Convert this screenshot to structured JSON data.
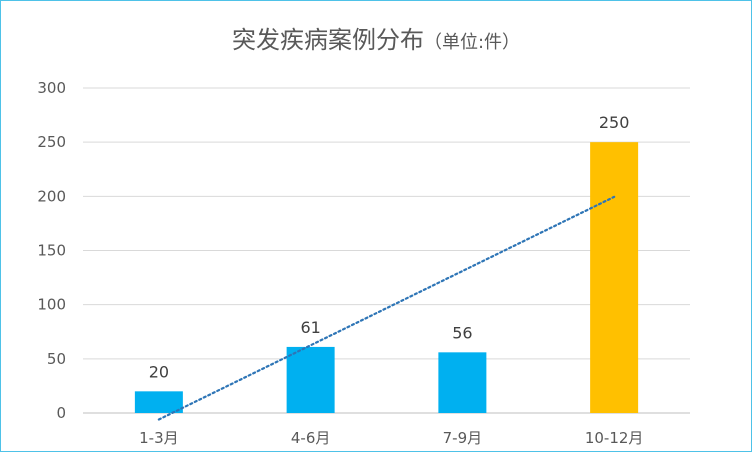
{
  "chart_data": {
    "type": "bar",
    "title": "突发疾病案例分布",
    "title_unit": "（单位:件）",
    "categories": [
      "1-3月",
      "4-6月",
      "7-9月",
      "10-12月"
    ],
    "values": [
      20,
      61,
      56,
      250
    ],
    "bar_colors": [
      "#00b0f0",
      "#00b0f0",
      "#00b0f0",
      "#ffc000"
    ],
    "ylim": [
      0,
      300
    ],
    "yticks": [
      0,
      50,
      100,
      150,
      200,
      250,
      300
    ],
    "grid": true,
    "legend": "none",
    "trendline": {
      "type": "linear",
      "style": "dotted",
      "color": "#2e75b6"
    },
    "frame_color": "#4ec2e8"
  }
}
